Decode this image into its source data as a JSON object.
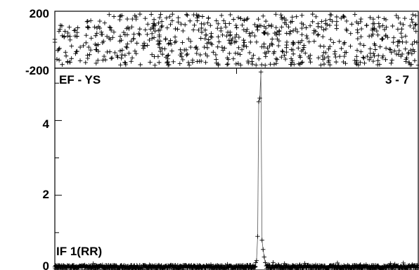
{
  "chart_data": [
    {
      "type": "scatter",
      "panel": "phase",
      "ylim": [
        -200,
        200
      ],
      "yticks": [
        "200",
        "-200"
      ],
      "xlim": [
        0,
        100
      ],
      "grid": false,
      "marker": "+",
      "values_note": "Phase points uniformly scattered between about -180 and 180 across the full x range",
      "sample_count": 700
    },
    {
      "type": "line",
      "panel": "amplitude",
      "title_left": "EF - YS",
      "title_right": "3 - 7",
      "annotation": "IF 1(RR)",
      "ylim": [
        0,
        5.4
      ],
      "yticks": [
        "0",
        "2",
        "4"
      ],
      "xlim": [
        0,
        100
      ],
      "grid": false,
      "marker": "+",
      "baseline": 0.08,
      "baseline_noise": 0.05,
      "peak": {
        "x": 56.5,
        "values": [
          {
            "x": 55.5,
            "y": 0.25
          },
          {
            "x": 55.8,
            "y": 0.9
          },
          {
            "x": 56.1,
            "y": 4.5
          },
          {
            "x": 56.4,
            "y": 4.6
          },
          {
            "x": 56.7,
            "y": 5.3
          },
          {
            "x": 57.0,
            "y": 0.8
          },
          {
            "x": 57.3,
            "y": 0.55
          },
          {
            "x": 57.6,
            "y": 0.35
          },
          {
            "x": 57.9,
            "y": 0.2
          }
        ]
      },
      "sample_count": 900
    }
  ]
}
